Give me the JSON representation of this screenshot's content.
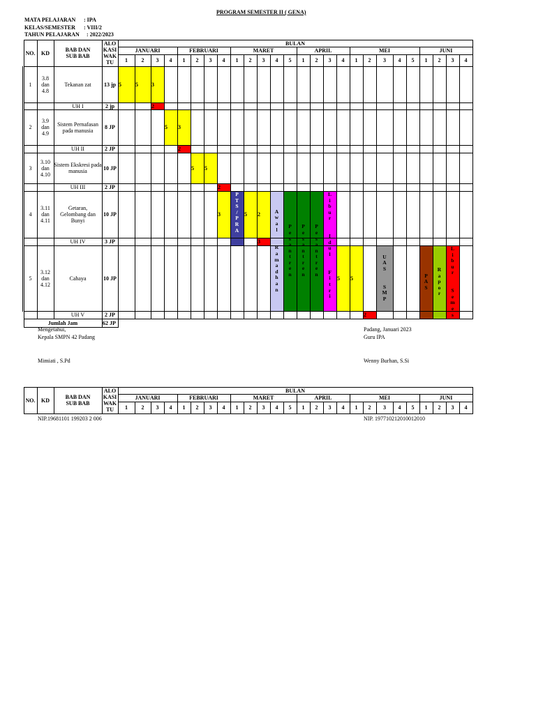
{
  "title": "PROGRAM SEMESTER II ( GENA)",
  "meta": [
    {
      "label": "MATA PELAJARAN",
      "value": ": IPA"
    },
    {
      "label": "KELAS/SEMESTER",
      "value": ": VIII/2"
    },
    {
      "label": "TAHUN PELAJARAN",
      "value": ": 2022/2023"
    }
  ],
  "headers": {
    "no": "NO.",
    "kd": "KD",
    "bab": "BAB DAN\n SUB  BAB",
    "alokasi": "ALO\nKASI\nWAK\nTU",
    "bulan": "BULAN"
  },
  "months": [
    {
      "name": "JANUARI",
      "weeks": [
        "1",
        "2",
        "3",
        "4"
      ]
    },
    {
      "name": "FEBRUARI",
      "weeks": [
        "1",
        "2",
        "3",
        "4"
      ]
    },
    {
      "name": "MARET",
      "weeks": [
        "1",
        "2",
        "3",
        "4",
        "5"
      ]
    },
    {
      "name": "APRIL",
      "weeks": [
        "1",
        "2",
        "3",
        "4"
      ]
    },
    {
      "name": "MEI",
      "weeks": [
        "1",
        "2",
        "3",
        "4",
        "5"
      ]
    },
    {
      "name": "JUNI",
      "weeks": [
        "1",
        "2",
        "3",
        "4"
      ]
    }
  ],
  "rows": [
    {
      "no": "1",
      "kd": "3.8\ndan\n4.8",
      "bab": "Tekanan zat",
      "jp": "13 jp"
    },
    {
      "no": "",
      "kd": "",
      "bab": "UH I",
      "jp": "2 jp"
    },
    {
      "no": "2",
      "kd": "3.9\ndan\n4.9",
      "bab": "Sistem Pernafasan\npada manusia",
      "jp": "8 JP"
    },
    {
      "no": "",
      "kd": "",
      "bab": "UH II",
      "jp": "2 JP"
    },
    {
      "no": "3",
      "kd": "3.10\ndan\n4.10",
      "bab": "Sistem Ekskresi pada\nmanusia",
      "jp": "10 JP"
    },
    {
      "no": "",
      "kd": "",
      "bab": "UH III",
      "jp": "2 JP"
    },
    {
      "no": "4",
      "kd": "3.11\ndan\n4.11",
      "bab": "Getaran,\nGelombang dan\nBunyi",
      "jp": "10 JP"
    },
    {
      "no": "",
      "kd": "",
      "bab": "UH IV",
      "jp": "3 JP"
    },
    {
      "no": "5",
      "kd": "3.12\ndan\n4.12",
      "bab": "Cahaya",
      "jp": "10 JP"
    },
    {
      "no": "",
      "kd": "",
      "bab": "UH V",
      "jp": "2 JP"
    }
  ],
  "total": {
    "label": "Jumlah Jam",
    "value": "62 JP"
  },
  "colors": {
    "yellow": "#ffff00",
    "red": "#ff0000",
    "navy": "#3f3f9f",
    "lavender": "#c8c8f2",
    "green": "#008000",
    "magenta": "#ff00ff",
    "gray": "#969696",
    "brown": "#993300",
    "lime": "#99cc00"
  },
  "fills": [
    {
      "row": 0,
      "col": 0,
      "color": "yellow",
      "text": "5"
    },
    {
      "row": 0,
      "col": 1,
      "color": "yellow",
      "text": "5"
    },
    {
      "row": 0,
      "col": 2,
      "color": "yellow",
      "text": "3"
    },
    {
      "row": 1,
      "col": 2,
      "color": "red",
      "text": "2"
    },
    {
      "row": 2,
      "col": 3,
      "color": "yellow",
      "text": "5"
    },
    {
      "row": 2,
      "col": 4,
      "color": "yellow",
      "text": "3"
    },
    {
      "row": 3,
      "col": 4,
      "color": "red",
      "text": "2"
    },
    {
      "row": 4,
      "col": 5,
      "color": "yellow",
      "text": "5"
    },
    {
      "row": 4,
      "col": 6,
      "color": "yellow",
      "text": "5"
    },
    {
      "row": 5,
      "col": 7,
      "color": "red",
      "text": "2"
    },
    {
      "row": 6,
      "col": 7,
      "color": "yellow",
      "text": "3"
    },
    {
      "row": 6,
      "col": 9,
      "color": "yellow",
      "text": "5"
    },
    {
      "row": 6,
      "col": 10,
      "color": "yellow",
      "text": "2"
    },
    {
      "row": 7,
      "col": 10,
      "color": "red",
      "text": "3"
    },
    {
      "row": 8,
      "col": 16,
      "color": "yellow",
      "text": "5"
    },
    {
      "row": 8,
      "col": 17,
      "color": "yellow",
      "text": "5"
    },
    {
      "row": 9,
      "col": 18,
      "color": "red",
      "text": "2"
    }
  ],
  "events": [
    {
      "col": 8,
      "rowStart": 6,
      "rowEnd": 7,
      "color": "navy",
      "text": "P T S / P R A"
    },
    {
      "col": 11,
      "rowStart": 6,
      "rowEnd": 8,
      "color": "lavender",
      "text": "A w a l   R a m a d h a n"
    },
    {
      "col": 12,
      "rowStart": 6,
      "rowEnd": 8,
      "color": "green",
      "text": "P e s a n t r e n"
    },
    {
      "col": 13,
      "rowStart": 6,
      "rowEnd": 8,
      "color": "green",
      "text": "P e s a n t r e n"
    },
    {
      "col": 14,
      "rowStart": 6,
      "rowEnd": 8,
      "color": "green",
      "text": "P e s a n t r e n"
    },
    {
      "col": 15,
      "rowStart": 6,
      "rowEnd": 8,
      "color": "magenta",
      "text": "L i b u r   I d u l   F i t r i"
    },
    {
      "col": 19,
      "rowStart": 8,
      "rowEnd": 8,
      "color": "gray",
      "text": "U A S   S M P"
    },
    {
      "col": 22,
      "rowStart": 8,
      "rowEnd": 9,
      "color": "brown",
      "text": "P A S"
    },
    {
      "col": 23,
      "rowStart": 8,
      "rowEnd": 9,
      "color": "lime",
      "text": "R a p o r"
    },
    {
      "col": 24,
      "rowStart": 8,
      "rowEnd": 9,
      "color": "red",
      "text": "L i b u r   S e m e s t e r"
    }
  ],
  "signatures": {
    "left_line1": "Mengetahui,",
    "left_line2": "Kepala SMPN 42 Padang",
    "left_name": "Mimiati , S.Pd",
    "left_nip": "NIP.19681101 199203 2 006",
    "right_line1": "Padang,      Januari 2023",
    "right_line2": "Guru IPA",
    "right_name": "Wenny Burhan, S.Si",
    "right_nip": "NIP. 197710212010012010"
  }
}
